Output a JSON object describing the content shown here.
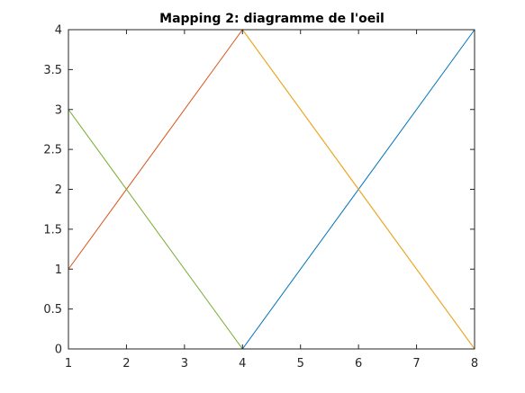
{
  "chart_data": {
    "type": "line",
    "title": "Mapping 2: diagramme de l'oeil",
    "xlabel": "",
    "ylabel": "",
    "xlim": [
      1,
      8
    ],
    "ylim": [
      0,
      4
    ],
    "xticks": [
      1,
      2,
      3,
      4,
      5,
      6,
      7,
      8
    ],
    "yticks": [
      0,
      0.5,
      1,
      1.5,
      2,
      2.5,
      3,
      3.5,
      4
    ],
    "xtick_labels": [
      "1",
      "2",
      "3",
      "4",
      "5",
      "6",
      "7",
      "8"
    ],
    "ytick_labels": [
      "0",
      "0.5",
      "1",
      "1.5",
      "2",
      "2.5",
      "3",
      "3.5",
      "4"
    ],
    "grid": false,
    "series": [
      {
        "color": "#0072BD",
        "x": [
          1,
          4,
          8
        ],
        "y": [
          0,
          0,
          4
        ]
      },
      {
        "color": "#D95319",
        "x": [
          1,
          4,
          8
        ],
        "y": [
          1,
          4,
          0
        ]
      },
      {
        "color": "#EDB120",
        "x": [
          1,
          4,
          8
        ],
        "y": [
          4,
          4,
          0
        ]
      },
      {
        "color": "#77AC30",
        "x": [
          1,
          4,
          8
        ],
        "y": [
          3,
          0,
          0
        ]
      },
      {
        "color": "#4DBEEE",
        "x": [
          4,
          8
        ],
        "y": [
          4,
          4
        ]
      },
      {
        "color": "#EDB120",
        "x": [
          4,
          8
        ],
        "y": [
          0,
          0
        ]
      }
    ]
  }
}
